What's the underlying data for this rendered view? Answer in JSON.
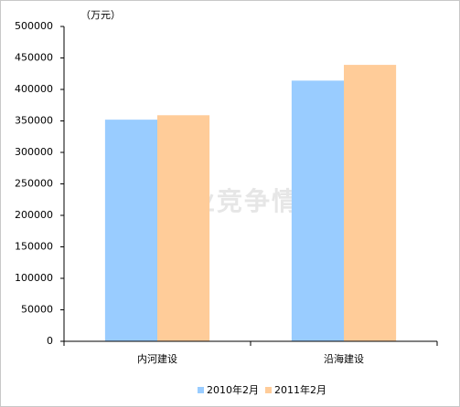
{
  "chart_data": {
    "type": "bar",
    "unit_label": "（万元）",
    "watermark": "中国产业竞争情报网",
    "categories": [
      "内河建设",
      "沿海建设"
    ],
    "series": [
      {
        "name": "2010年2月",
        "color": "#99ccff",
        "values": [
          352000,
          414000
        ]
      },
      {
        "name": "2011年2月",
        "color": "#ffcc99",
        "values": [
          359000,
          439000
        ]
      }
    ],
    "ylim": [
      0,
      500000
    ],
    "yticks": [
      0,
      50000,
      100000,
      150000,
      200000,
      250000,
      300000,
      350000,
      400000,
      450000,
      500000
    ],
    "grid": false,
    "legend": "bottom"
  }
}
